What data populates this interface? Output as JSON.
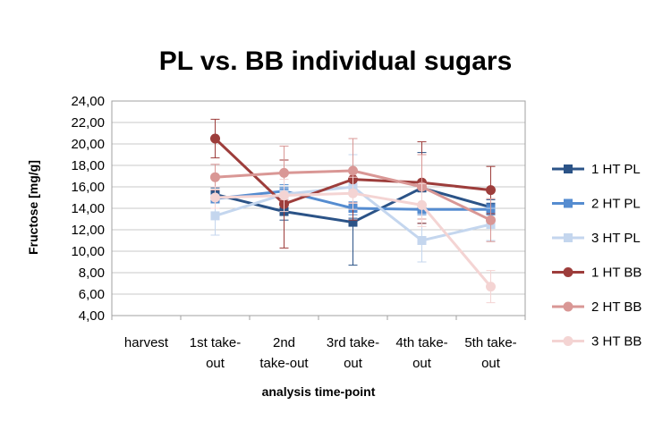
{
  "chart_data": {
    "type": "line",
    "title": "PL vs. BB individual sugars",
    "xlabel": "analysis time-point",
    "ylabel": "Fructose [mg/g]",
    "ylim": [
      4,
      24
    ],
    "y_ticks": [
      "4,00",
      "6,00",
      "8,00",
      "10,00",
      "12,00",
      "14,00",
      "16,00",
      "18,00",
      "20,00",
      "22,00",
      "24,00"
    ],
    "categories": [
      [
        "harvest"
      ],
      [
        "1st take-",
        "out"
      ],
      [
        "2nd",
        "take-out"
      ],
      [
        "3rd take-",
        "out"
      ],
      [
        "4th take-",
        "out"
      ],
      [
        "5th take-",
        "out"
      ]
    ],
    "grid": true,
    "legend_position": "right",
    "series": [
      {
        "name": "1 HT PL",
        "marker": "square",
        "color": "#2b5387",
        "values": [
          null,
          15.3,
          13.7,
          12.7,
          15.9,
          14.1
        ],
        "error": [
          null,
          0.6,
          0.8,
          4.0,
          3.3,
          0.7
        ]
      },
      {
        "name": "2 HT PL",
        "marker": "square",
        "color": "#558cd0",
        "values": [
          null,
          14.9,
          15.6,
          14.0,
          13.9,
          13.9
        ],
        "error": [
          null,
          0.4,
          0.6,
          0.6,
          0.5,
          0.5
        ]
      },
      {
        "name": "3 HT PL",
        "marker": "square",
        "color": "#c4d6ee",
        "values": [
          null,
          13.3,
          15.3,
          16.0,
          11.0,
          12.5
        ],
        "error": [
          null,
          1.8,
          0.6,
          3.0,
          2.0,
          1.5
        ]
      },
      {
        "name": "1 HT BB",
        "marker": "circle",
        "color": "#9d3d3b",
        "values": [
          null,
          20.5,
          14.4,
          16.7,
          16.4,
          15.7
        ],
        "error": [
          null,
          1.8,
          4.1,
          3.8,
          3.8,
          2.2
        ]
      },
      {
        "name": "2 HT BB",
        "marker": "circle",
        "color": "#d99795",
        "values": [
          null,
          16.9,
          17.3,
          17.5,
          16.0,
          12.9
        ],
        "error": [
          null,
          1.2,
          2.5,
          3.0,
          3.0,
          2.0
        ]
      },
      {
        "name": "3 HT BB",
        "marker": "circle",
        "color": "#f4d4d3",
        "values": [
          null,
          15.0,
          15.2,
          15.4,
          14.3,
          6.7
        ],
        "error": [
          null,
          1.0,
          1.5,
          1.5,
          2.0,
          1.5
        ]
      }
    ]
  }
}
